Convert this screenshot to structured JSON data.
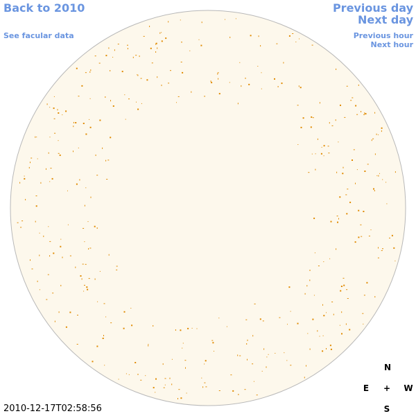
{
  "links": {
    "back": "Back to 2010",
    "facular": "See facular data",
    "prev_day": "Previous day",
    "next_day": "Next day",
    "prev_hour": "Previous hour",
    "next_hour": "Next hour"
  },
  "compass": {
    "north": "N",
    "east": "E",
    "center": "+",
    "west": "W",
    "south": "S"
  },
  "timestamp": "2010-12-17T02:58:56"
}
